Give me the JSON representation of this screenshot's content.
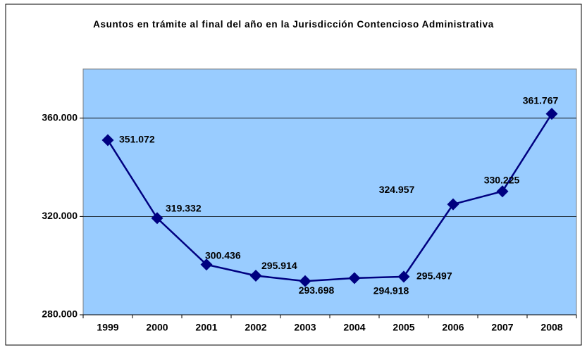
{
  "chart_data": {
    "type": "line",
    "title": "Asuntos en trámite al final del año en la Jurisdicción Contencioso Administrativa",
    "categories": [
      "1999",
      "2000",
      "2001",
      "2002",
      "2003",
      "2004",
      "2005",
      "2006",
      "2007",
      "2008"
    ],
    "series": [
      {
        "name": "Asuntos en trámite",
        "color": "#000080",
        "values": [
          351072,
          319332,
          300436,
          295914,
          293698,
          294918,
          295497,
          324957,
          330225,
          361767
        ],
        "value_labels": [
          "351.072",
          "319.332",
          "300.436",
          "295.914",
          "293.698",
          "294.918",
          "295.497",
          "324.957",
          "330.225",
          "361.767"
        ]
      }
    ],
    "ylim": [
      280000,
      380000
    ],
    "yticks": [
      {
        "value": 280000,
        "label": "280.000"
      },
      {
        "value": 320000,
        "label": "320.000"
      },
      {
        "value": 360000,
        "label": "360.000"
      }
    ],
    "grid": true,
    "plot_background": "#99ccff"
  }
}
